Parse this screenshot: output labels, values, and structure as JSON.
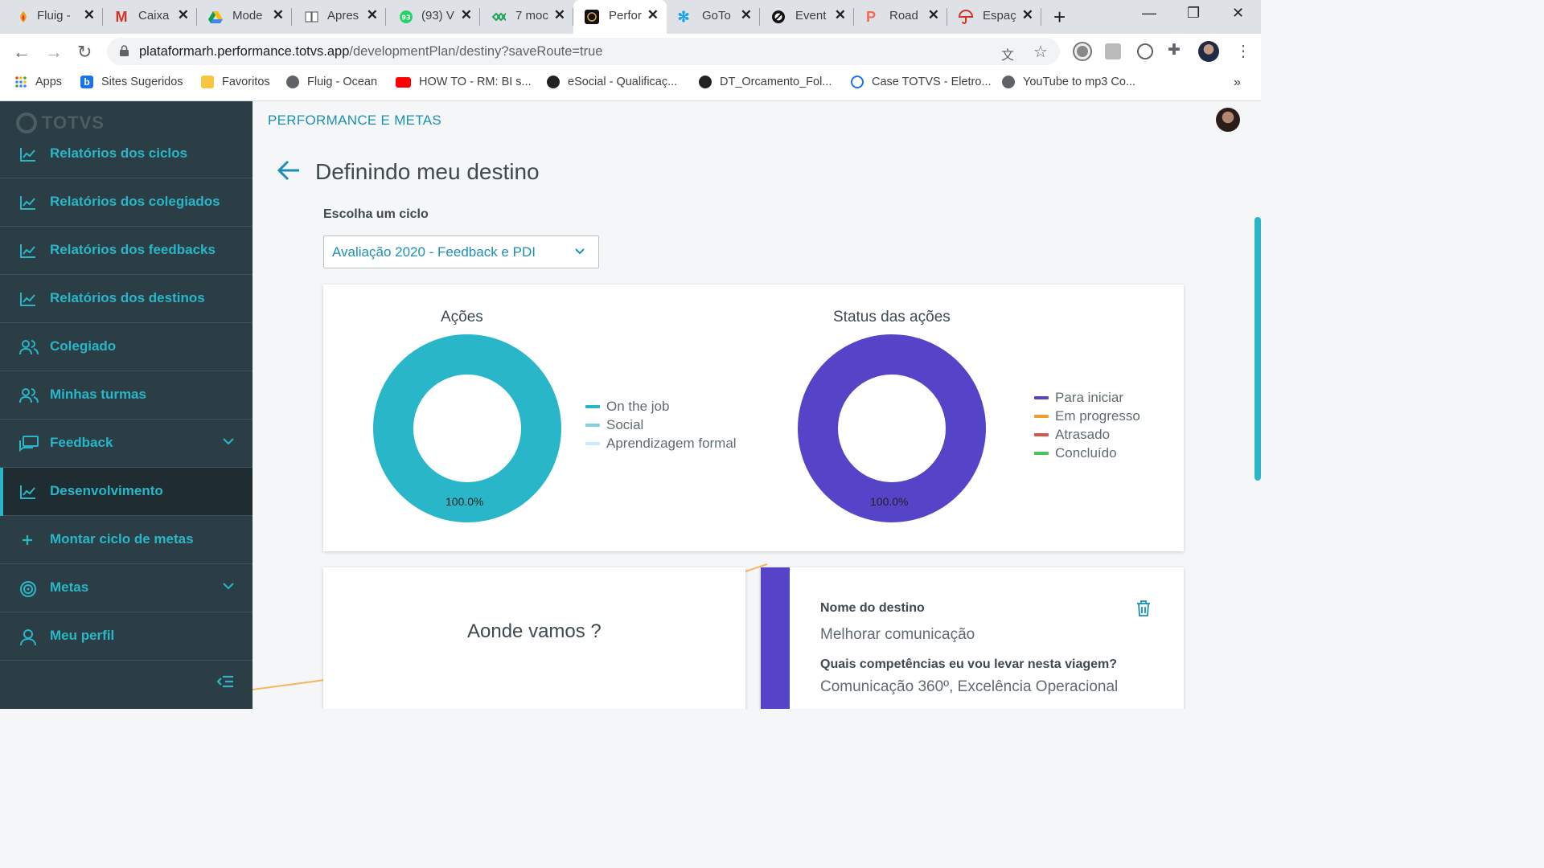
{
  "browser": {
    "tabs": [
      {
        "title": "Fluig -",
        "icon": "fluig-icon"
      },
      {
        "title": "Caixa",
        "icon": "gmail-icon"
      },
      {
        "title": "Mode",
        "icon": "drive-icon"
      },
      {
        "title": "Apres",
        "icon": "book-icon"
      },
      {
        "title": "(93) V",
        "icon": "whatsapp-icon"
      },
      {
        "title": "7 moc",
        "icon": "link-icon"
      },
      {
        "title": "Perfor",
        "icon": "totvs-icon"
      },
      {
        "title": "GoTo",
        "icon": "snowflake-icon"
      },
      {
        "title": "Event",
        "icon": "totvs-icon"
      },
      {
        "title": "Road",
        "icon": "p-icon"
      },
      {
        "title": "Espaç",
        "icon": "umbrella-icon"
      }
    ],
    "url_host": "plataformarh.performance.totvs.app",
    "url_path": "/developmentPlan/destiny?saveRoute=true",
    "bookmarks": [
      {
        "label": "Apps"
      },
      {
        "label": "Sites Sugeridos"
      },
      {
        "label": "Favoritos"
      },
      {
        "label": "Fluig - Ocean"
      },
      {
        "label": "HOW TO - RM: BI s..."
      },
      {
        "label": "eSocial - Qualificaç..."
      },
      {
        "label": "DT_Orcamento_Fol..."
      },
      {
        "label": "Case TOTVS - Eletro..."
      },
      {
        "label": "YouTube to mp3 Co..."
      }
    ],
    "more": "»"
  },
  "sidebar": {
    "logo": "TOTVS",
    "items": [
      {
        "label": "Relatórios dos ciclos",
        "icon": "chart-icon"
      },
      {
        "label": "Relatórios dos colegiados",
        "icon": "chart-icon"
      },
      {
        "label": "Relatórios dos feedbacks",
        "icon": "chart-icon"
      },
      {
        "label": "Relatórios dos destinos",
        "icon": "chart-icon"
      },
      {
        "label": "Colegiado",
        "icon": "users-icon"
      },
      {
        "label": "Minhas turmas",
        "icon": "users-icon"
      },
      {
        "label": "Feedback",
        "icon": "chat-icon"
      },
      {
        "label": "Desenvolvimento",
        "icon": "chart-icon"
      },
      {
        "label": "Montar ciclo de metas",
        "icon": "plus-icon"
      },
      {
        "label": "Metas",
        "icon": "target-icon"
      },
      {
        "label": "Meu perfil",
        "icon": "user-icon"
      }
    ],
    "active_item": "Desenvolvimento"
  },
  "header": {
    "module": "PERFORMANCE E METAS"
  },
  "page": {
    "title": "Definindo meu destino",
    "cycle_label": "Escolha um ciclo",
    "cycle_value": "Avaliação 2020 - Feedback e PDI"
  },
  "colors": {
    "accent": "#29b6c9",
    "sidebar_bg": "#2c3e45",
    "actions_donut": "#29b6c9",
    "status_donut": "#5544c8"
  },
  "chart_data": [
    {
      "type": "pie",
      "title": "Ações",
      "categories": [
        "On the job",
        "Social",
        "Aprendizagem formal"
      ],
      "values": [
        100,
        0,
        0
      ],
      "colors": [
        "#29b6c9",
        "#80d0e0",
        "#c7ecf3"
      ],
      "data_label": "100.0%",
      "legend_position": "right"
    },
    {
      "type": "pie",
      "title": "Status das ações",
      "categories": [
        "Para iniciar",
        "Em progresso",
        "Atrasado",
        "Concluído"
      ],
      "values": [
        100,
        0,
        0,
        0
      ],
      "colors": [
        "#5544c8",
        "#f39c34",
        "#d9534f",
        "#4cc25a"
      ],
      "data_label": "100.0%",
      "legend_position": "right"
    }
  ],
  "where_card": {
    "title": "Aonde vamos ?"
  },
  "destiny_card": {
    "name_label": "Nome do destino",
    "name_value": "Melhorar comunicação",
    "skills_label": "Quais competências eu vou levar nesta viagem?",
    "skills_value": "Comunicação 360º, Excelência Operacional"
  }
}
